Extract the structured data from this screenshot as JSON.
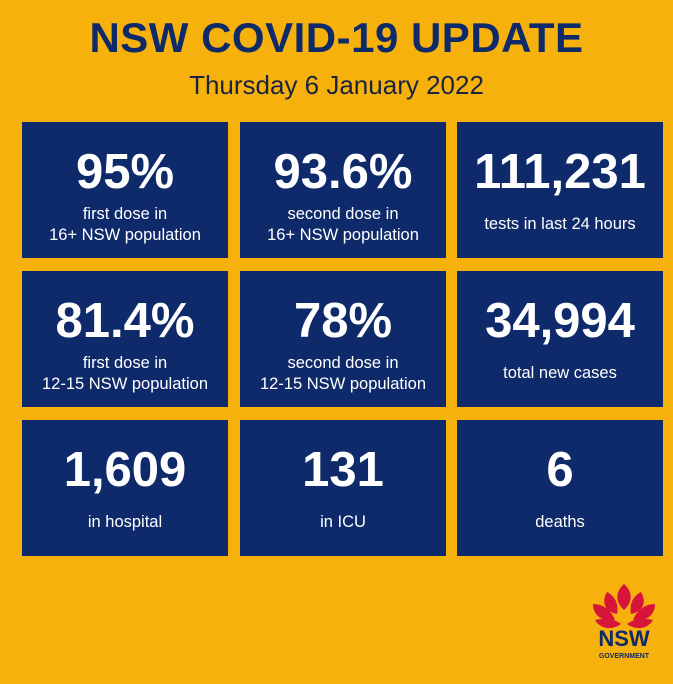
{
  "header": {
    "title": "NSW COVID-19 UPDATE",
    "subtitle": "Thursday 6 January 2022"
  },
  "tiles": [
    {
      "value": "95%",
      "label": [
        "first dose in",
        "16+ NSW population"
      ]
    },
    {
      "value": "93.6%",
      "label": [
        "second dose in",
        "16+ NSW population"
      ]
    },
    {
      "value": "111,231",
      "label": [
        "tests in last 24 hours"
      ]
    },
    {
      "value": "81.4%",
      "label": [
        "first dose in",
        "12-15 NSW population"
      ]
    },
    {
      "value": "78%",
      "label": [
        "second dose in",
        "12-15 NSW population"
      ]
    },
    {
      "value": "34,994",
      "label": [
        "total new cases"
      ]
    },
    {
      "value": "1,609",
      "label": [
        "in hospital"
      ]
    },
    {
      "value": "131",
      "label": [
        "in ICU"
      ]
    },
    {
      "value": "6",
      "label": [
        "deaths"
      ]
    }
  ],
  "logo": {
    "name": "NSW",
    "sub": "GOVERNMENT"
  }
}
